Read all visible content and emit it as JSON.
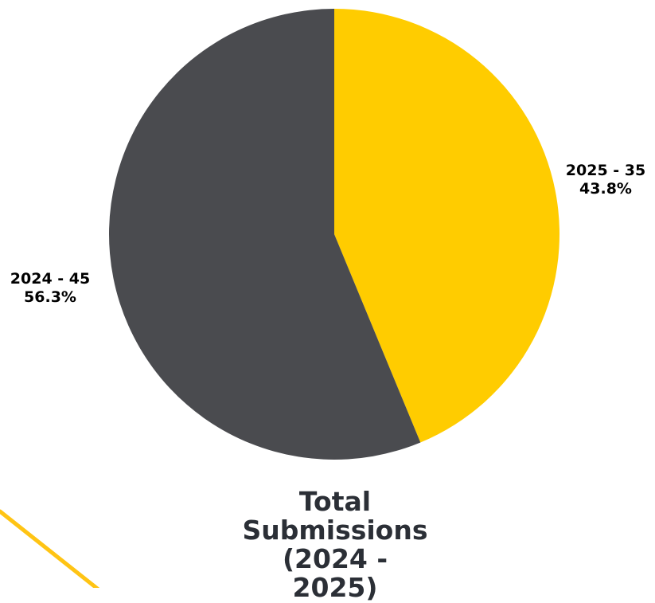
{
  "chart_data": {
    "type": "pie",
    "title_lines": [
      "Total",
      "Submissions",
      "(2024 - 2025)"
    ],
    "slices": [
      {
        "category": "2025",
        "value": 35,
        "percent": "43.8%",
        "label": "2025 - 35",
        "color": "#FFCC00"
      },
      {
        "category": "2024",
        "value": 45,
        "percent": "56.3%",
        "label": "2024 - 45",
        "color": "#4A4B4F"
      }
    ],
    "legend": "none"
  },
  "decoration": {
    "accent_line_color": "#FFC414"
  }
}
